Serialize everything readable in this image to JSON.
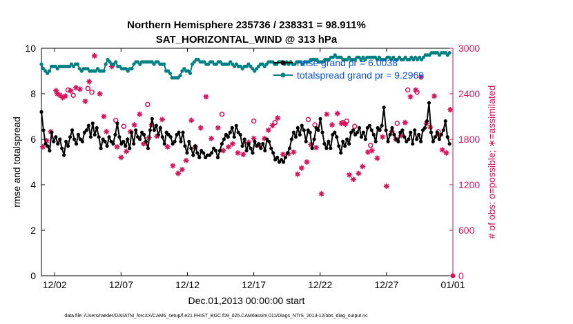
{
  "chart_data": {
    "type": "line",
    "title": "Northern Hemisphere 235736 / 238331 = 98.911%",
    "subtitle": "SAT_HORIZONTAL_WIND @ 313 hPa",
    "xlabel": "Dec.01,2013 00:00:00 start",
    "ylabel": "rmse and totalspread",
    "ylabel_right": "# of obs: o=possible; ∗=assimilated",
    "footnote": "data file: /Users/raeder/DAI/ATM_forcXX/CAM6_setup/f.e21.FHIST_BGC.f09_025.CAM6assim.011/Diags_NTrS_2013-12/obs_diag_output.nc",
    "x_ticks": [
      "12/02",
      "12/07",
      "12/12",
      "12/17",
      "12/22",
      "12/27",
      "01/01"
    ],
    "x_tick_days": [
      1,
      6,
      11,
      16,
      21,
      26,
      31
    ],
    "xlim_days": [
      0,
      31
    ],
    "ylim": [
      0,
      10
    ],
    "y_ticks": [
      "0",
      "2",
      "4",
      "6",
      "8",
      "10"
    ],
    "ylim_right": [
      0,
      3000
    ],
    "y_ticks_right": [
      "0",
      "600",
      "1200",
      "1800",
      "2400",
      "3000"
    ],
    "grid": false,
    "legend_position": "top-right",
    "colors": {
      "rmse": "#000000",
      "spread": "#008080",
      "obs": "#d6135a",
      "legend": "#0a4fd6"
    },
    "series": [
      {
        "name": "rmse grand pr = 6.0038",
        "axis": "left",
        "values": [
          7.2,
          6.4,
          5.8,
          5.7,
          5.5,
          6.3,
          5.9,
          6.1,
          5.8,
          6.0,
          5.6,
          5.3,
          5.9,
          5.7,
          6.1,
          6.4,
          6.0,
          5.8,
          6.2,
          6.0,
          5.9,
          6.3,
          6.4,
          6.6,
          6.1,
          6.7,
          6.2,
          6.5,
          6.1,
          5.6,
          6.0,
          5.9,
          5.7,
          6.1,
          5.9,
          5.8,
          6.2,
          6.7,
          6.1,
          5.8,
          5.9,
          5.7,
          6.0,
          5.6,
          6.3,
          5.8,
          6.4,
          6.1,
          6.0,
          6.3,
          6.2,
          5.9,
          5.6,
          6.4,
          6.9,
          6.4,
          6.6,
          6.2,
          6.5,
          6.1,
          5.8,
          6.3,
          6.2,
          6.1,
          5.8,
          5.9,
          6.2,
          6.3,
          5.9,
          6.3,
          5.7,
          5.4,
          5.9,
          5.6,
          5.3,
          5.7,
          5.4,
          5.2,
          5.5,
          5.4,
          5.2,
          5.3,
          5.3,
          5.4,
          5.6,
          5.5,
          5.2,
          5.5,
          5.8,
          6.0,
          6.2,
          6.1,
          6.3,
          6.5,
          6.1,
          6.6,
          6.3,
          6.2,
          5.7,
          6.0,
          5.5,
          5.8,
          5.6,
          5.4,
          5.9,
          5.7,
          5.8,
          5.6,
          5.8,
          5.5,
          6.0,
          5.9,
          5.6,
          5.4,
          5.1,
          5.2,
          5.0,
          5.1,
          5.0,
          5.2,
          5.4,
          5.6,
          6.0,
          6.3,
          6.1,
          6.5,
          6.2,
          6.6,
          6.4,
          5.9,
          6.4,
          6.3,
          5.6,
          6.0,
          6.5,
          6.4,
          6.9,
          6.3,
          5.8,
          5.6,
          5.9,
          5.6,
          6.2,
          6.3,
          6.1,
          5.7,
          5.4,
          5.9,
          5.7,
          6.0,
          5.8,
          6.3,
          6.4,
          6.2,
          6.3,
          6.5,
          6.1,
          6.3,
          6.0,
          6.5,
          6.6,
          6.4,
          6.2,
          5.9,
          6.5,
          6.4,
          6.6,
          7.4,
          6.4,
          5.9,
          6.2,
          6.5,
          6.2,
          6.0,
          5.9,
          6.3,
          6.4,
          6.1,
          5.9,
          6.0,
          6.3,
          5.8,
          6.4,
          6.0,
          6.2,
          5.9,
          6.4,
          6.5,
          6.8,
          7.6,
          6.3,
          5.9,
          6.1,
          6.3,
          6.0,
          6.2,
          6.4,
          6.8,
          6.1,
          5.8
        ]
      },
      {
        "name": "totalspread grand pr = 9.2969",
        "axis": "left",
        "values": [
          9.3,
          9.1,
          9.0,
          8.9,
          9.0,
          9.2,
          9.2,
          9.2,
          9.1,
          9.2,
          9.2,
          9.2,
          9.2,
          9.2,
          9.2,
          9.3,
          9.2,
          9.3,
          9.3,
          9.1,
          9.0,
          9.1,
          9.1,
          9.1,
          9.0,
          9.0,
          9.0,
          9.0,
          9.1,
          9.0,
          9.0,
          9.0,
          9.3,
          9.5,
          9.4,
          9.3,
          9.3,
          9.4,
          9.2,
          9.2,
          9.1,
          9.1,
          9.1,
          9.0,
          9.1,
          9.1,
          9.3,
          9.4,
          9.4,
          9.3,
          9.4,
          9.4,
          9.4,
          9.4,
          9.4,
          9.4,
          9.3,
          9.4,
          9.4,
          9.3,
          9.3,
          9.3,
          9.0,
          9.0,
          8.9,
          8.7,
          8.7,
          8.7,
          8.7,
          8.8,
          9.0,
          9.1,
          9.0,
          9.0,
          8.9,
          9.3,
          9.4,
          9.5,
          9.5,
          9.4,
          9.4,
          9.4,
          9.3,
          9.3,
          9.4,
          9.4,
          9.3,
          9.3,
          9.4,
          9.4,
          9.3,
          9.3,
          9.3,
          9.3,
          9.4,
          9.3,
          9.2,
          9.3,
          9.2,
          9.2,
          9.1,
          9.2,
          9.2,
          9.3,
          9.2,
          9.1,
          9.0,
          9.1,
          9.2,
          9.3,
          9.3,
          9.2,
          9.3,
          9.4,
          9.4,
          9.4,
          9.3,
          9.3,
          9.4,
          9.4,
          9.4,
          9.3,
          9.4,
          9.3,
          9.4,
          9.3,
          9.3,
          9.4,
          9.4,
          9.4,
          9.3,
          9.4,
          9.4,
          9.4,
          9.5,
          9.5,
          9.5,
          9.5,
          9.4,
          9.4,
          9.4,
          9.5,
          9.5,
          9.5,
          9.6,
          9.6,
          9.7,
          9.6,
          9.6,
          9.6,
          9.5,
          9.5,
          9.5,
          9.6,
          9.5,
          9.5,
          9.5,
          9.6,
          9.6,
          9.5,
          9.6,
          9.5,
          9.6,
          9.6,
          9.6,
          9.6,
          9.6,
          9.5,
          9.6,
          9.5,
          9.5,
          9.5,
          9.6,
          9.6,
          9.5,
          9.6,
          9.5,
          9.5,
          9.6,
          9.5,
          9.5,
          9.6,
          9.5,
          9.5,
          9.6,
          9.5,
          9.6,
          9.5,
          9.6,
          9.5,
          9.6,
          9.7,
          9.7,
          9.7,
          9.8,
          9.8,
          9.8,
          9.8,
          9.7,
          9.8,
          9.8,
          9.8,
          9.7,
          9.8
        ]
      },
      {
        "name": "obs_possible",
        "axis": "right",
        "marker": "o",
        "x": [
          2.0,
          2.4,
          3.5,
          3.8,
          5.6,
          6.2,
          8.0,
          13.6,
          16.0,
          17.6,
          20.1,
          20.6,
          22.7,
          23.0,
          23.6,
          24.8,
          26.8,
          27.6,
          28.3,
          29.9
        ],
        "values": [
          2450,
          2380,
          2470,
          2420,
          2050,
          1970,
          2260,
          2130,
          2040,
          2020,
          2060,
          1990,
          2020,
          2040,
          1970,
          1720,
          2010,
          2450,
          2420,
          1900
        ]
      },
      {
        "name": "obs_assimilated",
        "axis": "right",
        "marker": "*",
        "x": [
          0.1,
          0.4,
          0.7,
          1.1,
          1.2,
          1.4,
          1.6,
          1.8,
          2.2,
          2.6,
          2.9,
          3.3,
          3.6,
          4.0,
          4.4,
          4.7,
          4.9,
          5.3,
          5.7,
          6.0,
          6.4,
          6.7,
          7.0,
          7.4,
          7.7,
          8.1,
          8.3,
          8.7,
          9.1,
          9.5,
          9.9,
          10.3,
          10.6,
          10.9,
          11.3,
          11.6,
          12.0,
          12.4,
          12.8,
          13.3,
          13.7,
          14.1,
          14.4,
          14.8,
          15.2,
          15.6,
          16.0,
          16.4,
          16.8,
          17.1,
          17.4,
          17.8,
          18.2,
          18.6,
          19.0,
          19.3,
          19.6,
          20.0,
          20.3,
          20.7,
          21.1,
          21.5,
          21.9,
          22.3,
          22.6,
          22.9,
          23.2,
          23.5,
          23.9,
          24.2,
          24.6,
          24.9,
          25.3,
          25.7,
          26.0,
          26.4,
          26.7,
          27.1,
          27.4,
          27.8,
          28.2,
          28.6,
          29.0,
          29.3,
          29.6,
          29.9,
          30.2,
          30.5,
          30.8
        ],
        "values": [
          1700,
          1780,
          1900,
          2440,
          2400,
          2380,
          2350,
          2370,
          2440,
          2480,
          2460,
          2300,
          2560,
          2900,
          2400,
          2100,
          1900,
          2760,
          1700,
          1560,
          1640,
          1900,
          1990,
          2130,
          1740,
          1820,
          1990,
          1840,
          2060,
          1700,
          1450,
          1350,
          1400,
          1520,
          2050,
          1700,
          1950,
          2360,
          1810,
          1950,
          1650,
          1700,
          1740,
          1620,
          1600,
          1760,
          1810,
          1720,
          1810,
          1920,
          1980,
          2080,
          1600,
          1610,
          1630,
          1340,
          1420,
          1500,
          1730,
          1690,
          1080,
          2130,
          1990,
          2140,
          2010,
          2000,
          1330,
          1270,
          1350,
          1440,
          1630,
          1650,
          1550,
          1830,
          1180,
          1900,
          1800,
          1850,
          2020,
          2360,
          2450,
          2620,
          2010,
          1960,
          2370,
          1860,
          1660,
          1620,
          2190
        ]
      }
    ]
  }
}
